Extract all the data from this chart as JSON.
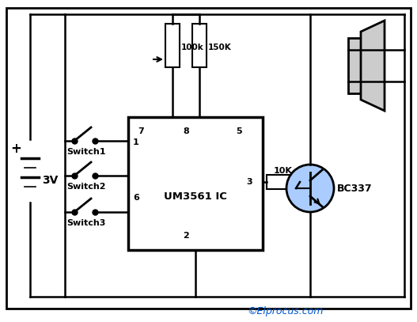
{
  "bg_color": "#ffffff",
  "ic_label": "UM3561 IC",
  "transistor_fill": "#aaccff",
  "transistor_label": "BC337",
  "resistor_100k": "100k",
  "resistor_150K": "150K",
  "resistor_10K": "10K",
  "battery_label": "3V",
  "switch_labels": [
    "Switch1",
    "Switch2",
    "Switch3"
  ],
  "copyright": "©Elprocus.com",
  "pin7": "7",
  "pin8": "8",
  "pin5": "5",
  "pin1": "1",
  "pin6": "6",
  "pin3": "3",
  "pin2": "2"
}
